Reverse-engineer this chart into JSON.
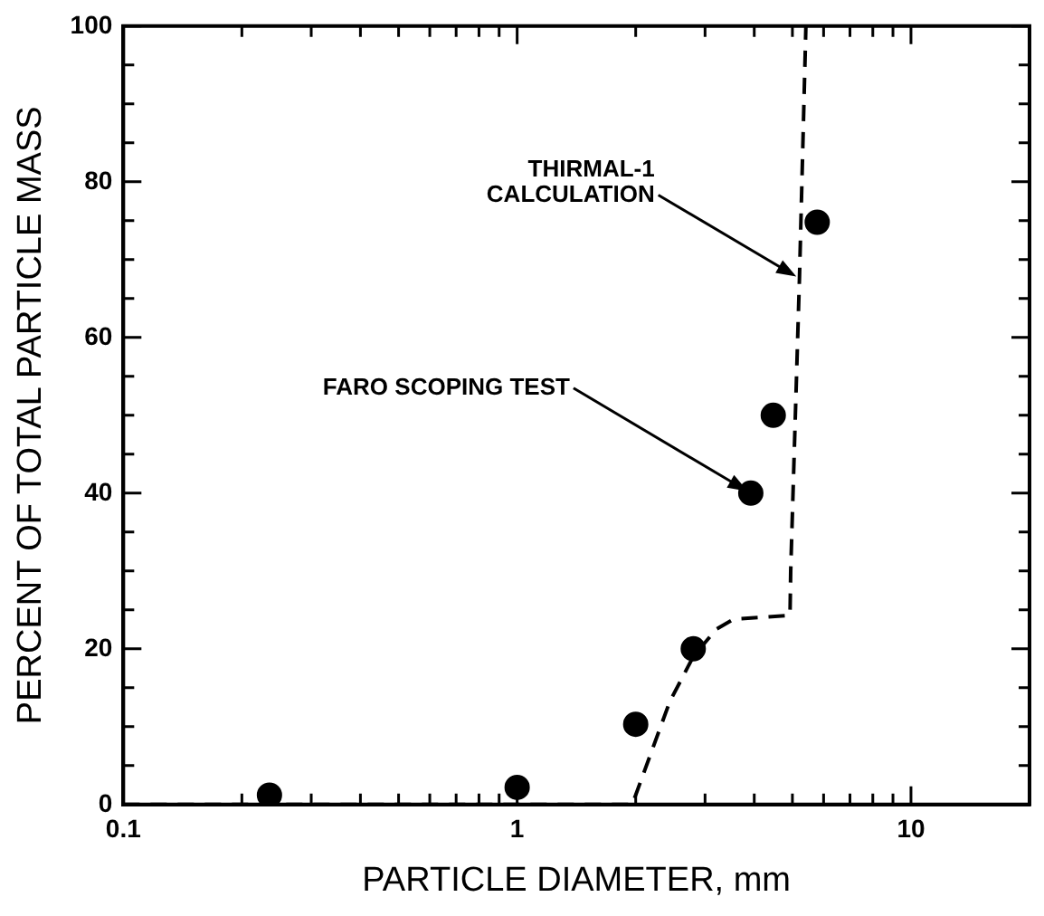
{
  "chart_data": {
    "type": "scatter",
    "xlabel": "PARTICLE DIAMETER, mm",
    "ylabel": "PERCENT OF TOTAL PARTICLE MASS",
    "log": "x",
    "grid": false,
    "legend": false,
    "xlim": [
      0.1,
      20
    ],
    "xticks": [
      0.1,
      {
        "value": 0.2,
        "label": null
      },
      {
        "value": 0.3,
        "label": null
      },
      {
        "value": 0.4,
        "label": null
      },
      {
        "value": 0.5,
        "label": null
      },
      {
        "value": 0.6,
        "label": null
      },
      {
        "value": 0.7,
        "label": null
      },
      {
        "value": 0.8,
        "label": null
      },
      {
        "value": 0.9,
        "label": null
      },
      1,
      {
        "value": 2,
        "label": null
      },
      {
        "value": 3,
        "label": null
      },
      {
        "value": 4,
        "label": null
      },
      {
        "value": 5,
        "label": null
      },
      {
        "value": 6,
        "label": null
      },
      {
        "value": 7,
        "label": null
      },
      {
        "value": 8,
        "label": null
      },
      {
        "value": 9,
        "label": null
      },
      10
    ],
    "ylim": [
      0,
      100
    ],
    "yticks": [
      0,
      {
        "value": 5,
        "label": null
      },
      {
        "value": 10,
        "label": null
      },
      {
        "value": 15,
        "label": null
      },
      20,
      {
        "value": 25,
        "label": null
      },
      {
        "value": 30,
        "label": null
      },
      {
        "value": 35,
        "label": null
      },
      40,
      {
        "value": 45,
        "label": null
      },
      {
        "value": 50,
        "label": null
      },
      {
        "value": 55,
        "label": null
      },
      60,
      {
        "value": 65,
        "label": null
      },
      {
        "value": 70,
        "label": null
      },
      {
        "value": 75,
        "label": null
      },
      80,
      {
        "value": 85,
        "label": null
      },
      {
        "value": 90,
        "label": null
      },
      {
        "value": 95,
        "label": null
      },
      100
    ],
    "series": [
      {
        "color": "#000000",
        "marker": "circle",
        "x": [
          0.235,
          1.0,
          2.0,
          2.8,
          3.92,
          4.47,
          5.78
        ],
        "values": [
          1.2,
          2.2,
          10.3,
          20,
          40,
          50,
          74.8
        ]
      },
      {
        "type": "line",
        "color": "#000000",
        "line_style": "dashed",
        "marker": "none",
        "x": [
          0.1,
          1.96,
          2.44,
          2.8,
          3.2,
          3.54,
          4.93,
          4.95,
          5.21,
          5.41
        ],
        "values": [
          0,
          0,
          13.2,
          19,
          22.5,
          23.8,
          24.3,
          30,
          67.6,
          100
        ]
      }
    ],
    "annotations": [
      {
        "text": "THIRMAL-1\nCALCULATION",
        "x": 5.21,
        "y": 67.6
      },
      {
        "text": "FARO SCOPING TEST",
        "x": 3.92,
        "y": 40
      }
    ]
  }
}
